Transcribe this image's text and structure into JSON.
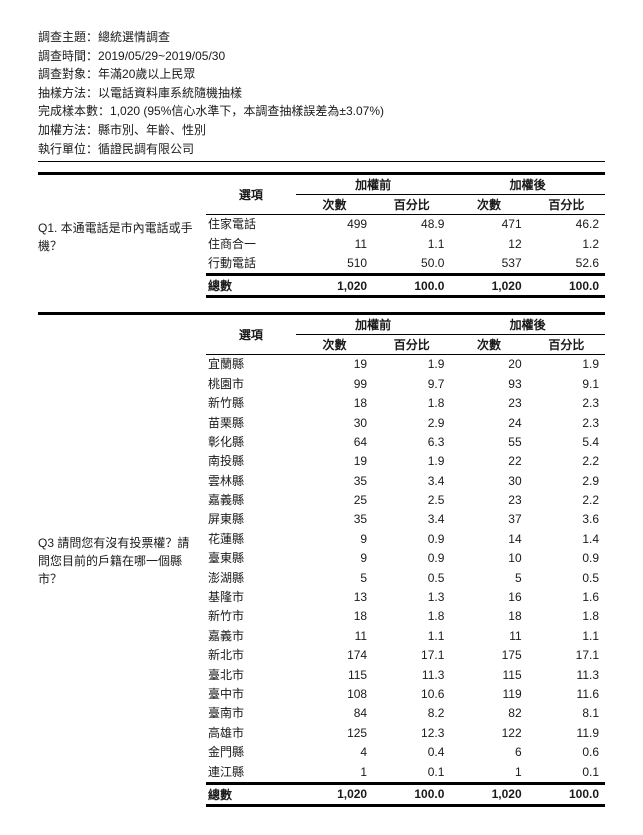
{
  "meta": {
    "subject_label": "調查主題：",
    "subject_value": "總統選情調查",
    "time_label": "調查時間：",
    "time_value": "2019/05/29~2019/05/30",
    "target_label": "調查對象：",
    "target_value": "年滿20歲以上民眾",
    "sample_label": "抽樣方法：",
    "sample_value": "以電話資料庫系統隨機抽樣",
    "n_label": "完成樣本數：",
    "n_value": "1,020 (95%信心水準下，本調查抽樣誤差為±3.07%)",
    "weight_label": "加權方法：",
    "weight_value": "縣市別、年齡、性別",
    "exec_label": "執行單位：",
    "exec_value": "循證民調有限公司"
  },
  "headers": {
    "option": "選項",
    "before": "加權前",
    "after": "加權後",
    "count": "次數",
    "pct": "百分比",
    "total": "總數"
  },
  "colors": {
    "background": "#ffffff",
    "text": "#1a1a1a",
    "rule": "#000000"
  },
  "typography": {
    "font_family": "Microsoft JhengHei / PingFang TC",
    "body_pt": 12,
    "header_bold": true
  },
  "q1": {
    "question": "Q1. 本通電話是市內電話或手機？",
    "rows": [
      {
        "option": "住家電話",
        "before_n": "499",
        "before_p": "48.9",
        "after_n": "471",
        "after_p": "46.2"
      },
      {
        "option": "住商合一",
        "before_n": "11",
        "before_p": "1.1",
        "after_n": "12",
        "after_p": "1.2"
      },
      {
        "option": "行動電話",
        "before_n": "510",
        "before_p": "50.0",
        "after_n": "537",
        "after_p": "52.6"
      }
    ],
    "total": {
      "before_n": "1,020",
      "before_p": "100.0",
      "after_n": "1,020",
      "after_p": "100.0"
    }
  },
  "q3": {
    "question": "Q3 請問您有沒有投票權？請問您目前的戶籍在哪一個縣市？",
    "rows": [
      {
        "option": "宜蘭縣",
        "before_n": "19",
        "before_p": "1.9",
        "after_n": "20",
        "after_p": "1.9"
      },
      {
        "option": "桃園市",
        "before_n": "99",
        "before_p": "9.7",
        "after_n": "93",
        "after_p": "9.1"
      },
      {
        "option": "新竹縣",
        "before_n": "18",
        "before_p": "1.8",
        "after_n": "23",
        "after_p": "2.3"
      },
      {
        "option": "苗栗縣",
        "before_n": "30",
        "before_p": "2.9",
        "after_n": "24",
        "after_p": "2.3"
      },
      {
        "option": "彰化縣",
        "before_n": "64",
        "before_p": "6.3",
        "after_n": "55",
        "after_p": "5.4"
      },
      {
        "option": "南投縣",
        "before_n": "19",
        "before_p": "1.9",
        "after_n": "22",
        "after_p": "2.2"
      },
      {
        "option": "雲林縣",
        "before_n": "35",
        "before_p": "3.4",
        "after_n": "30",
        "after_p": "2.9"
      },
      {
        "option": "嘉義縣",
        "before_n": "25",
        "before_p": "2.5",
        "after_n": "23",
        "after_p": "2.2"
      },
      {
        "option": "屏東縣",
        "before_n": "35",
        "before_p": "3.4",
        "after_n": "37",
        "after_p": "3.6"
      },
      {
        "option": "花蓮縣",
        "before_n": "9",
        "before_p": "0.9",
        "after_n": "14",
        "after_p": "1.4"
      },
      {
        "option": "臺東縣",
        "before_n": "9",
        "before_p": "0.9",
        "after_n": "10",
        "after_p": "0.9"
      },
      {
        "option": "澎湖縣",
        "before_n": "5",
        "before_p": "0.5",
        "after_n": "5",
        "after_p": "0.5"
      },
      {
        "option": "基隆市",
        "before_n": "13",
        "before_p": "1.3",
        "after_n": "16",
        "after_p": "1.6"
      },
      {
        "option": "新竹市",
        "before_n": "18",
        "before_p": "1.8",
        "after_n": "18",
        "after_p": "1.8"
      },
      {
        "option": "嘉義市",
        "before_n": "11",
        "before_p": "1.1",
        "after_n": "11",
        "after_p": "1.1"
      },
      {
        "option": "新北市",
        "before_n": "174",
        "before_p": "17.1",
        "after_n": "175",
        "after_p": "17.1"
      },
      {
        "option": "臺北市",
        "before_n": "115",
        "before_p": "11.3",
        "after_n": "115",
        "after_p": "11.3"
      },
      {
        "option": "臺中市",
        "before_n": "108",
        "before_p": "10.6",
        "after_n": "119",
        "after_p": "11.6"
      },
      {
        "option": "臺南市",
        "before_n": "84",
        "before_p": "8.2",
        "after_n": "82",
        "after_p": "8.1"
      },
      {
        "option": "高雄市",
        "before_n": "125",
        "before_p": "12.3",
        "after_n": "122",
        "after_p": "11.9"
      },
      {
        "option": "金門縣",
        "before_n": "4",
        "before_p": "0.4",
        "after_n": "6",
        "after_p": "0.6"
      },
      {
        "option": "連江縣",
        "before_n": "1",
        "before_p": "0.1",
        "after_n": "1",
        "after_p": "0.1"
      }
    ],
    "total": {
      "before_n": "1,020",
      "before_p": "100.0",
      "after_n": "1,020",
      "after_p": "100.0"
    }
  }
}
